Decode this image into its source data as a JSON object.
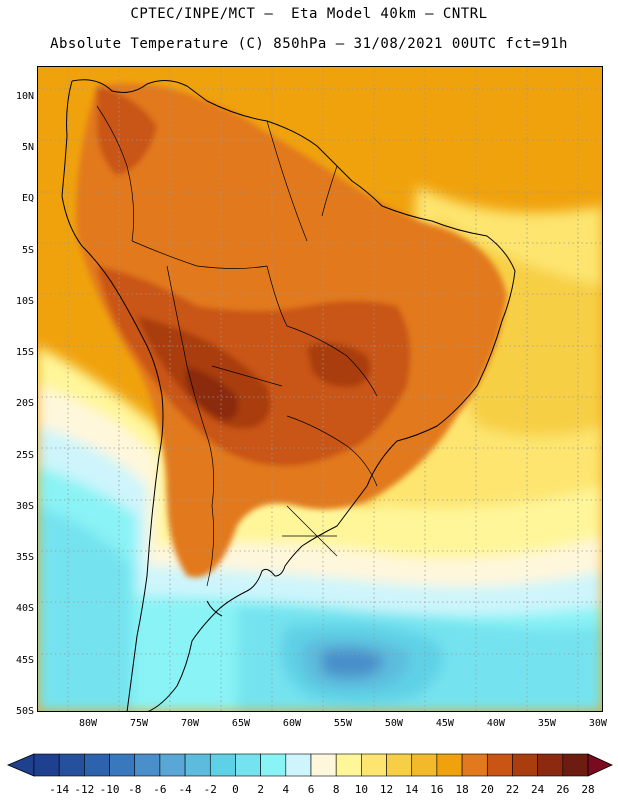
{
  "header": {
    "line1": "CPTEC/INPE/MCT –  Eta Model 40km – CNTRL",
    "line2": "Absolute Temperature (C) 850hPa – 31/08/2021 00UTC fct=91h"
  },
  "map": {
    "region": "South America",
    "lat_range": [
      -50,
      13
    ],
    "lon_range": [
      -85,
      -29.5
    ],
    "lat_ticks": [
      "10N",
      "5N",
      "EQ",
      "5S",
      "10S",
      "15S",
      "20S",
      "25S",
      "30S",
      "35S",
      "40S",
      "45S",
      "50S"
    ],
    "lat_tick_values": [
      10,
      5,
      0,
      -5,
      -10,
      -15,
      -20,
      -25,
      -30,
      -35,
      -40,
      -45,
      -50
    ],
    "lon_ticks": [
      "80W",
      "75W",
      "70W",
      "65W",
      "60W",
      "55W",
      "50W",
      "45W",
      "40W",
      "35W",
      "30W"
    ],
    "lon_tick_values": [
      -80,
      -75,
      -70,
      -65,
      -60,
      -55,
      -50,
      -45,
      -40,
      -35,
      -30
    ]
  },
  "colorbar": {
    "labels": [
      "-14",
      "-12",
      "-10",
      "-8",
      "-6",
      "-4",
      "-2",
      "0",
      "2",
      "4",
      "6",
      "8",
      "10",
      "12",
      "14",
      "16",
      "18",
      "20",
      "22",
      "24",
      "26",
      "28"
    ],
    "colors": [
      "#1f3f8f",
      "#24509c",
      "#2d63ad",
      "#3a78bd",
      "#4a8fca",
      "#5aa6d6",
      "#5dbcdd",
      "#5fd1e6",
      "#74e3ef",
      "#8af3f6",
      "#cdf5fb",
      "#fff7dc",
      "#fff69a",
      "#fde56f",
      "#f7cf45",
      "#f2b92a",
      "#f0a20d",
      "#e2791c",
      "#c95413",
      "#a93d10",
      "#8b2a10",
      "#6d1c10",
      "#7a0b1f"
    ]
  },
  "fields": {
    "band_colors": [
      "#5fd1e6",
      "#74e3ef",
      "#8af3f6",
      "#cdf5fb",
      "#fff7dc",
      "#fff69a",
      "#fde56f",
      "#f7cf45",
      "#f2b92a",
      "#f0a20d",
      "#e2791c",
      "#c95413",
      "#a93d10",
      "#8b2a10"
    ]
  }
}
